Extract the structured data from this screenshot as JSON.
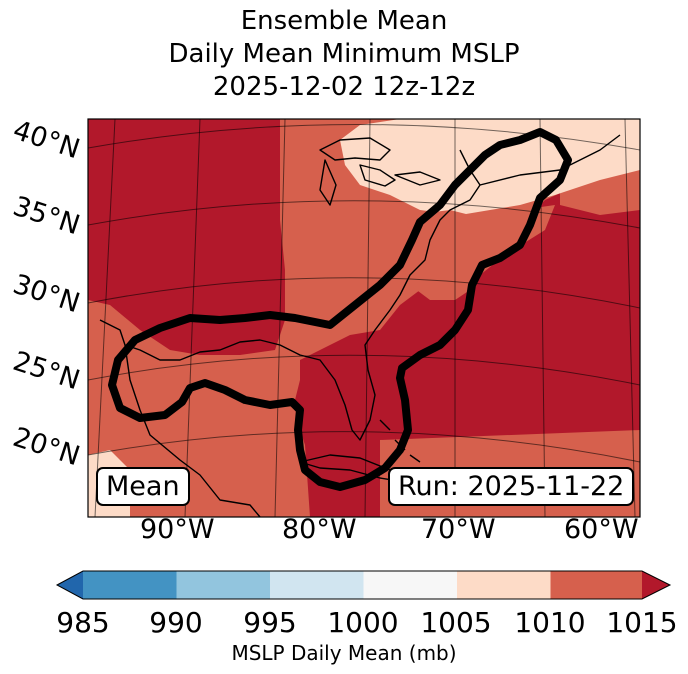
{
  "title": {
    "line1": "Ensemble Mean",
    "line2": "Daily Mean Minimum MSLP",
    "line3": "2025-12-02 12z-12z"
  },
  "map": {
    "latitude_labels": [
      "40°N",
      "35°N",
      "30°N",
      "25°N",
      "20°N"
    ],
    "longitude_labels": [
      "90°W",
      "80°W",
      "70°W",
      "60°W"
    ],
    "mean_label": "Mean",
    "run_label": "Run: 2025-11-22",
    "contour_color": "#000000",
    "coastline_color": "#000000"
  },
  "colorbar": {
    "bins": [
      {
        "range": "<985",
        "color": "#2166ac"
      },
      {
        "range": "985-990",
        "color": "#4393c3"
      },
      {
        "range": "990-995",
        "color": "#92c5de"
      },
      {
        "range": "995-1000",
        "color": "#d1e5f0"
      },
      {
        "range": "1000-1005",
        "color": "#f7f7f7"
      },
      {
        "range": "1005-1010",
        "color": "#fddbc7"
      },
      {
        "range": "1010-1015",
        "color": "#d6604d"
      },
      {
        "range": ">1015",
        "color": "#b2182b"
      }
    ],
    "ticks": [
      "985",
      "990",
      "995",
      "1000",
      "1005",
      "1010",
      "1015"
    ],
    "label": "MSLP Daily Mean (mb)"
  }
}
